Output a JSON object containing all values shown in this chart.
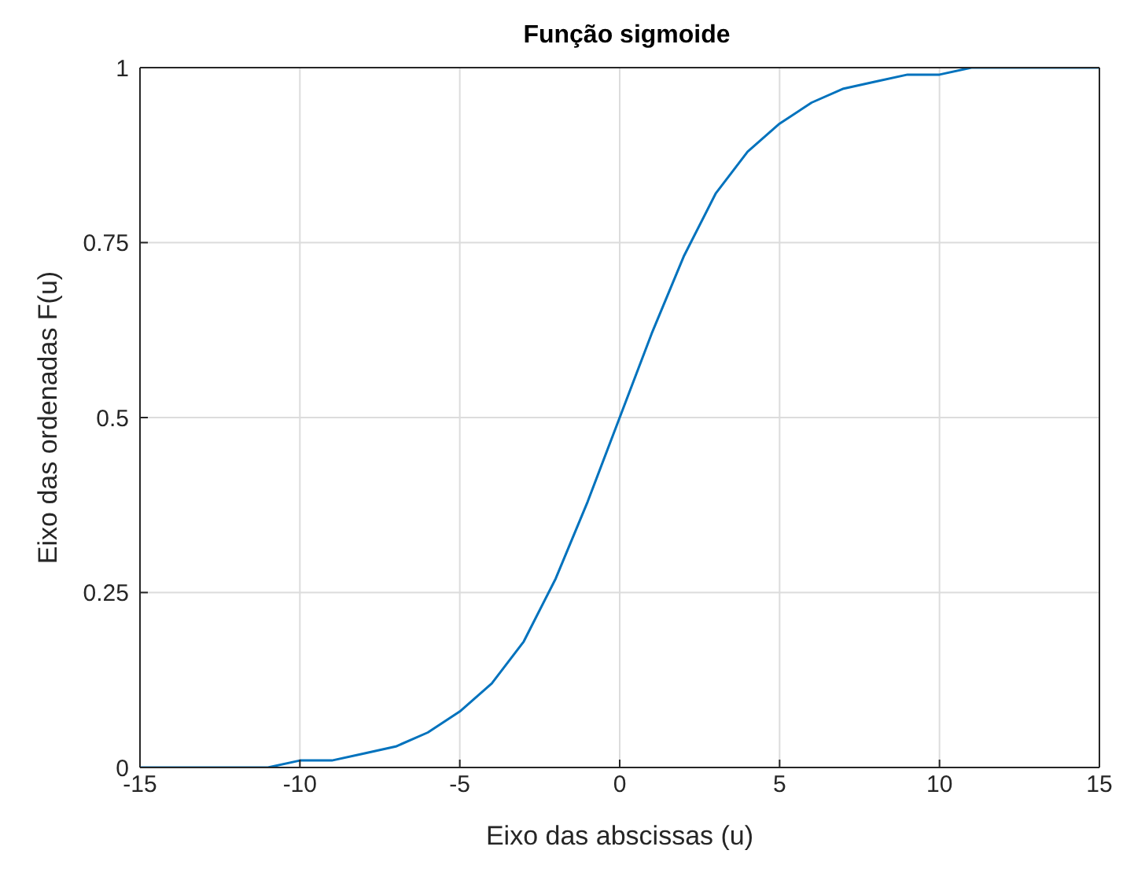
{
  "chart_data": {
    "type": "line",
    "title": "Função sigmoide",
    "xlabel": "Eixo das abscissas (u)",
    "ylabel": "Eixo das ordenadas F(u)",
    "x": [
      -15,
      -14,
      -13,
      -12,
      -11,
      -10,
      -9,
      -8,
      -7,
      -6,
      -5,
      -4,
      -3,
      -2,
      -1,
      0,
      1,
      2,
      3,
      4,
      5,
      6,
      7,
      8,
      9,
      10,
      11,
      12,
      13,
      14,
      15
    ],
    "series": [
      {
        "color": "#0072bd",
        "values": [
          0,
          0,
          0,
          0,
          0,
          0.01,
          0.01,
          0.02,
          0.03,
          0.05,
          0.08,
          0.12,
          0.18,
          0.27,
          0.38,
          0.5,
          0.62,
          0.73,
          0.82,
          0.88,
          0.92,
          0.95,
          0.97,
          0.98,
          0.99,
          0.99,
          1,
          1,
          1,
          1,
          1
        ]
      }
    ],
    "xlim": [
      -15,
      15
    ],
    "xticks": [
      -15,
      -10,
      -5,
      0,
      5,
      10,
      15
    ],
    "ylim": [
      0,
      1
    ],
    "yticks": [
      0,
      0.25,
      0.5,
      0.75,
      1
    ],
    "grid": true,
    "legend": false,
    "marker": "none",
    "line_style": "solid"
  }
}
